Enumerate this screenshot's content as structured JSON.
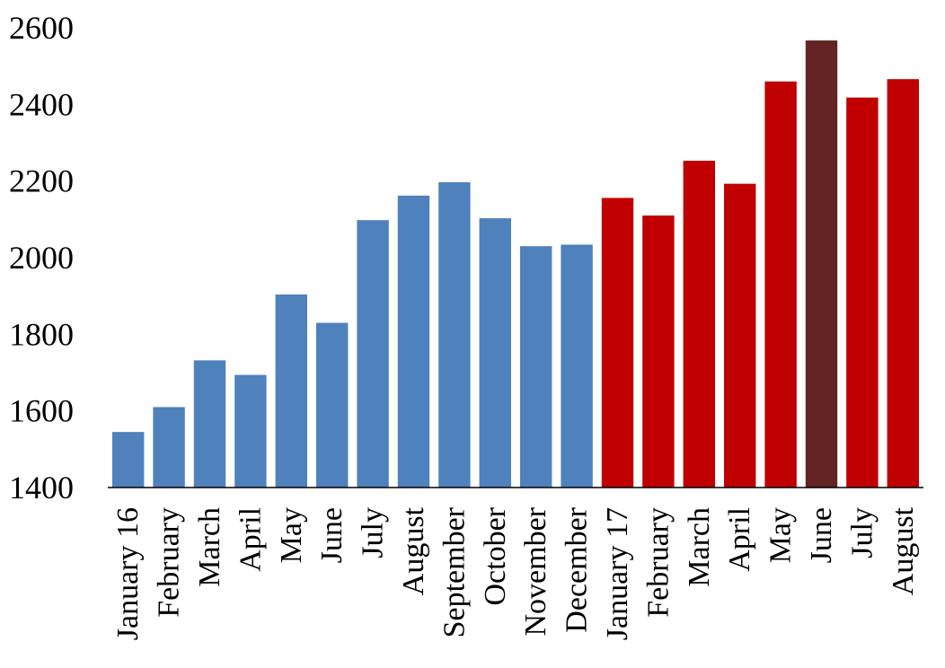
{
  "chart_data": {
    "type": "bar",
    "title": "",
    "xlabel": "",
    "ylabel": "",
    "ylim": [
      1400,
      2600
    ],
    "yticks": [
      1400,
      1600,
      1800,
      2000,
      2200,
      2400,
      2600
    ],
    "grid": false,
    "legend": "none",
    "categories": [
      "January 16",
      "February",
      "March",
      "April",
      "May",
      "June",
      "July",
      "August",
      "September",
      "October",
      "November",
      "December",
      "January 17",
      "February",
      "March",
      "April",
      "May",
      "June",
      "July",
      "August"
    ],
    "values": [
      1545,
      1610,
      1732,
      1694,
      1904,
      1830,
      2098,
      2162,
      2197,
      2103,
      2030,
      2034,
      2156,
      2110,
      2253,
      2193,
      2460,
      2567,
      2418,
      2466
    ],
    "bar_colors": [
      "#4f81bd",
      "#4f81bd",
      "#4f81bd",
      "#4f81bd",
      "#4f81bd",
      "#4f81bd",
      "#4f81bd",
      "#4f81bd",
      "#4f81bd",
      "#4f81bd",
      "#4f81bd",
      "#4f81bd",
      "#c00000",
      "#c00000",
      "#c00000",
      "#c00000",
      "#c00000",
      "#632523",
      "#c00000",
      "#c00000"
    ],
    "axis_color": "#000000"
  }
}
